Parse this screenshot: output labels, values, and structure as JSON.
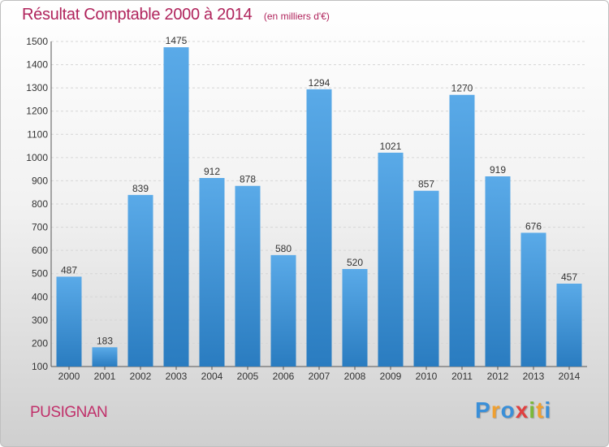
{
  "header": {
    "title": "Résultat Comptable 2000 à 2014",
    "subtitle": "(en milliers d'€)"
  },
  "footer": {
    "commune": "PUSIGNAN",
    "logo_text": "Proxiti"
  },
  "colors": {
    "title": "#b0245c",
    "bar_top": "#5aaae8",
    "bar_bottom": "#2a7cc0"
  },
  "chart_data": {
    "type": "bar",
    "title": "Résultat Comptable 2000 à 2014",
    "xlabel": "",
    "ylabel": "",
    "categories": [
      "2000",
      "2001",
      "2002",
      "2003",
      "2004",
      "2005",
      "2006",
      "2007",
      "2008",
      "2009",
      "2010",
      "2011",
      "2012",
      "2013",
      "2014"
    ],
    "values": [
      487,
      183,
      839,
      1475,
      912,
      878,
      580,
      1294,
      520,
      1021,
      857,
      1270,
      919,
      676,
      457
    ],
    "ylim": [
      100,
      1500
    ],
    "yticks": [
      100,
      200,
      300,
      400,
      500,
      600,
      700,
      800,
      900,
      1000,
      1100,
      1200,
      1300,
      1400,
      1500
    ],
    "grid": true
  }
}
